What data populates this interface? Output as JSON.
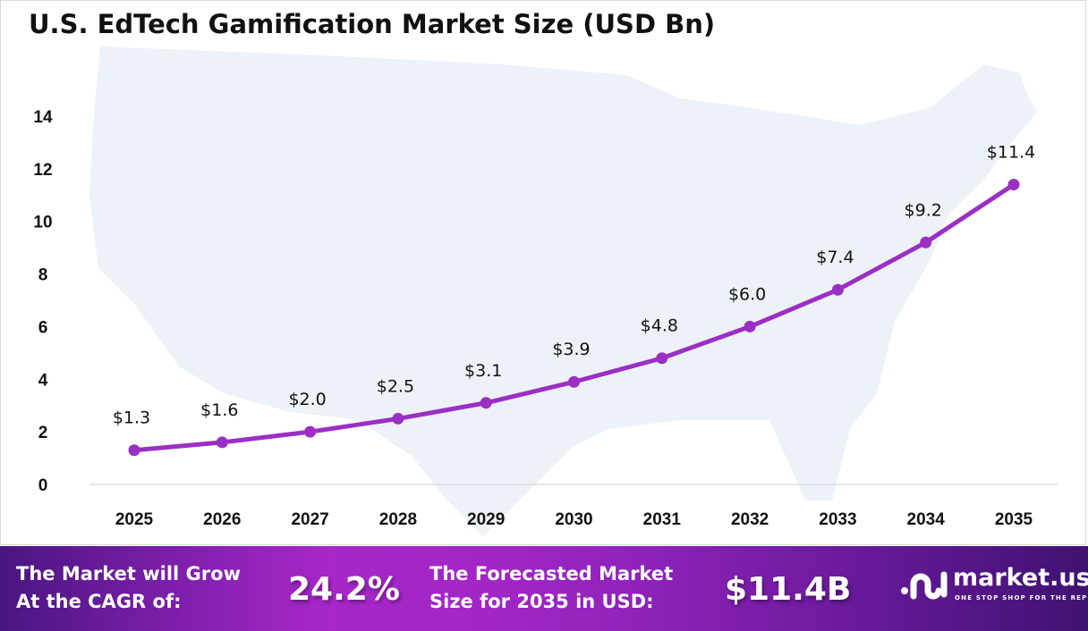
{
  "chart_data": {
    "type": "line",
    "title": "U.S. EdTech Gamification Market Size (USD Bn)",
    "categories": [
      "2025",
      "2026",
      "2027",
      "2028",
      "2029",
      "2030",
      "2031",
      "2032",
      "2033",
      "2034",
      "2035"
    ],
    "values": [
      1.3,
      1.6,
      2.0,
      2.5,
      3.1,
      3.9,
      4.8,
      6.0,
      7.4,
      9.2,
      11.4
    ],
    "data_labels": [
      "$1.3",
      "$1.6",
      "$2.0",
      "$2.5",
      "$3.1",
      "$3.9",
      "$4.8",
      "$6.0",
      "$7.4",
      "$9.2",
      "$11.4"
    ],
    "ylim": [
      0,
      14
    ],
    "yticks": [
      "0",
      "2",
      "4",
      "6",
      "8",
      "10",
      "12",
      "14"
    ],
    "xlabel": "",
    "ylabel": "",
    "grid": false,
    "line_color": "#9b2fc4",
    "background": "map of the United States (light)"
  },
  "footer": {
    "cagr_label_line1": "The Market will Grow",
    "cagr_label_line2": "At the CAGR of:",
    "cagr_value": "24.2%",
    "forecast_label_line1": "The Forecasted Market",
    "forecast_label_line2": "Size for 2035 in USD:",
    "forecast_value": "$11.4B",
    "logo_name": "market.us",
    "logo_tagline": "ONE STOP SHOP FOR THE REPORTS"
  }
}
